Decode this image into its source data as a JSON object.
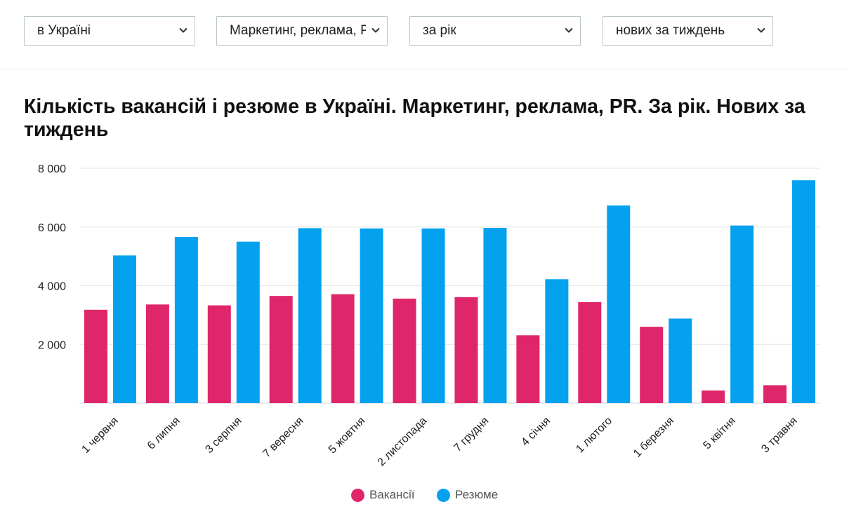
{
  "filters": [
    {
      "value": "в Україні"
    },
    {
      "value": "Маркетинг, реклама, PR"
    },
    {
      "value": "за рік"
    },
    {
      "value": "нових за тиждень"
    }
  ],
  "colors": {
    "vacancies": "#e0266a",
    "resumes": "#03a1ee",
    "grid": "#e6e6e6"
  },
  "chart_data": {
    "type": "bar",
    "title": "Кількість вакансій і резюме в Україні. Маркетинг, реклама, PR. За рік. Нових за тиждень",
    "categories": [
      "1 червня",
      "6 липня",
      "3 серпня",
      "7 вересня",
      "5 жовтня",
      "2 листопада",
      "7 грудня",
      "4 січня",
      "1 лютого",
      "1 березня",
      "5 квітня",
      "3 травня"
    ],
    "series": [
      {
        "name": "Вакансії",
        "values": [
          3180,
          3360,
          3330,
          3650,
          3710,
          3560,
          3610,
          2310,
          3440,
          2600,
          430,
          610
        ]
      },
      {
        "name": "Резюме",
        "values": [
          5030,
          5660,
          5500,
          5960,
          5950,
          5950,
          5970,
          4220,
          6730,
          2880,
          6050,
          7590
        ]
      }
    ],
    "yticks": [
      2000,
      4000,
      6000,
      8000
    ],
    "ytick_labels": [
      "2 000",
      "4 000",
      "6 000",
      "8 000"
    ],
    "ylim": [
      0,
      8000
    ],
    "grid": true,
    "legend": "bottom-center"
  }
}
